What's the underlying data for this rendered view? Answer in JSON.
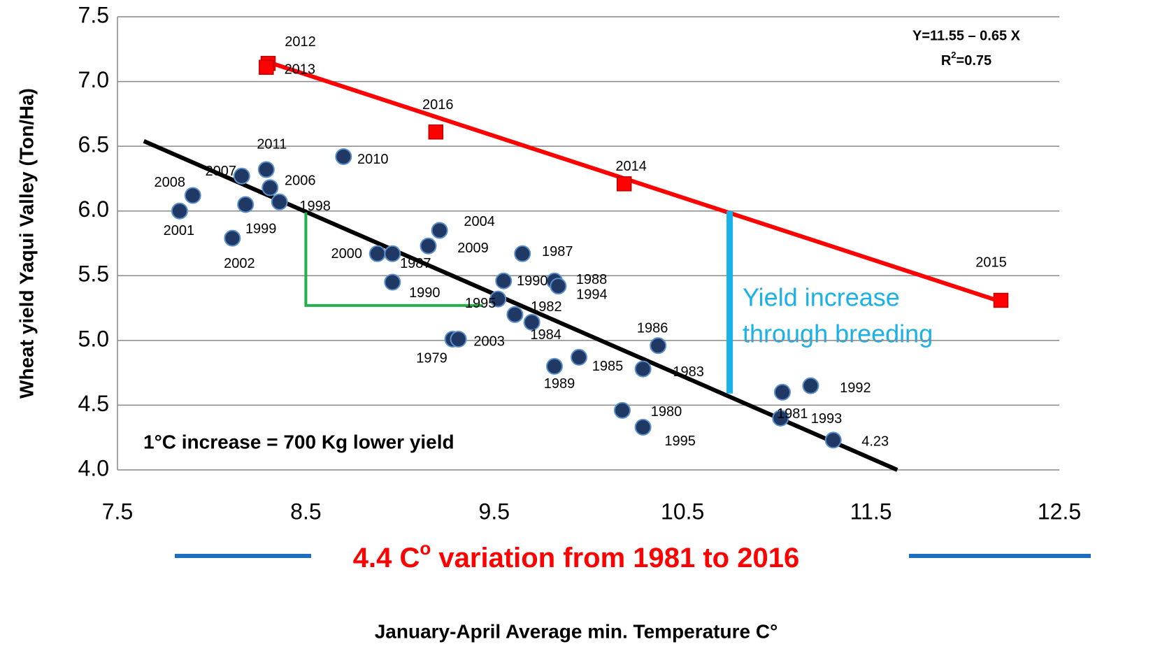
{
  "chart_data": {
    "type": "scatter",
    "xlabel": "January-April Average min. Temperature C°",
    "ylabel": "Wheat yield Yaqui Valley (Ton/Ha)",
    "xlim": [
      7.5,
      12.5
    ],
    "ylim": [
      4.0,
      7.5
    ],
    "xticks": [
      7.5,
      8.5,
      9.5,
      10.5,
      11.5,
      12.5
    ],
    "yticks": [
      {
        "value": 4,
        "label": "4.0"
      },
      4.5,
      {
        "value": 5,
        "label": "5.0"
      },
      5.5,
      {
        "value": 6,
        "label": "6.0"
      },
      6.5,
      {
        "value": 7,
        "label": "7.0"
      },
      7.5
    ],
    "grid": true,
    "series": [
      {
        "color": "#1f3864",
        "x": [
          7.83,
          7.9,
          8.16,
          8.18,
          8.11,
          8.29,
          8.31,
          8.36,
          8.7,
          8.88,
          8.96,
          8.96,
          9.15,
          9.21,
          9.28,
          9.31,
          9.52,
          9.65,
          9.55,
          9.61,
          9.7,
          9.82,
          9.84,
          9.82,
          9.95,
          10.37,
          10.29,
          10.18,
          10.29,
          11.03,
          11.02,
          11.18,
          11.3
        ],
        "values": [
          6.0,
          6.12,
          6.27,
          6.05,
          5.79,
          6.32,
          6.18,
          6.07,
          6.42,
          5.67,
          5.67,
          5.45,
          5.73,
          5.85,
          5.01,
          5.01,
          5.32,
          5.67,
          5.46,
          5.2,
          5.14,
          5.46,
          5.42,
          4.8,
          4.87,
          4.96,
          4.78,
          4.46,
          4.33,
          4.6,
          4.4,
          4.65,
          4.23
        ],
        "labels": [
          "2001",
          "2008",
          "2007",
          "1999",
          "2002",
          "2011",
          "2006",
          "1998",
          "2010",
          "2000",
          "1987",
          "1990",
          "2009",
          "2004",
          "1979",
          "2003",
          "1995",
          "1987",
          "1990",
          "1982",
          "1984",
          "1988",
          "1994",
          "1989",
          "1985",
          "1986",
          "1983",
          "1980",
          "1995",
          "1993",
          "1981",
          "1992",
          "4.23"
        ]
      },
      {
        "color": "#ff0000",
        "x": [
          8.3,
          8.29,
          9.19,
          10.19,
          12.19
        ],
        "values": [
          7.14,
          7.11,
          6.61,
          6.21,
          5.31
        ],
        "labels": [
          "2012",
          "2013",
          "2016",
          "2014",
          "2015"
        ]
      }
    ],
    "lines": [
      {
        "color": "#ff0000",
        "x": [
          8.3,
          12.19
        ],
        "values": [
          7.15,
          5.3
        ]
      },
      {
        "color": "#000000",
        "x": [
          7.64,
          11.64
        ],
        "values": [
          6.54,
          4.0
        ]
      },
      {
        "color": "#22b14c",
        "x": [
          8.5,
          8.5,
          9.44
        ],
        "values": [
          5.99,
          5.27,
          5.27
        ]
      },
      {
        "color": "#1ab0e8",
        "x": [
          10.75,
          10.75
        ],
        "values": [
          6.0,
          4.59
        ]
      }
    ],
    "equation": "Y=11.55 – 0.65 X",
    "r2": {
      "base": "R",
      "sup": "2",
      "rest": "=0.75"
    },
    "slope_note": "1°C increase = 700 Kg lower yield",
    "breeding_note": [
      "Yield increase",
      "through breeding"
    ],
    "variation_note": {
      "base": "4.4 C",
      "sup": "o",
      "rest": " variation from 1981 to 2016"
    }
  }
}
